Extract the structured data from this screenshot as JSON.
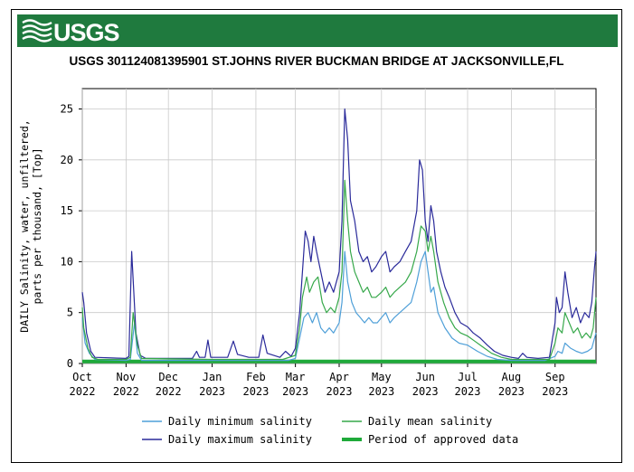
{
  "header": {
    "logo_text": "USGS",
    "title": "USGS 301124081395901 ST.JOHNS RIVER BUCKMAN BRIDGE AT JACKSONVILLE,FL"
  },
  "colors": {
    "banner": "#1f7a3e",
    "minimum": "#4e9fd8",
    "maximum": "#2a2a9a",
    "mean": "#36a84a",
    "approved": "#1faa3a"
  },
  "chart_data": {
    "type": "line",
    "ylabel": "DAILY Salinity, water, unfiltered, parts per thousand, [Top]",
    "xlabel": "",
    "ylim": [
      0,
      27
    ],
    "yticks": [
      0,
      5,
      10,
      15,
      20,
      25
    ],
    "xlim": [
      "2022-10-01",
      "2023-09-30"
    ],
    "xticks": [
      {
        "date": "2022-10-01",
        "label1": "Oct",
        "label2": "2022"
      },
      {
        "date": "2022-11-01",
        "label1": "Nov",
        "label2": "2022"
      },
      {
        "date": "2022-12-01",
        "label1": "Dec",
        "label2": "2022"
      },
      {
        "date": "2023-01-01",
        "label1": "Jan",
        "label2": "2023"
      },
      {
        "date": "2023-02-01",
        "label1": "Feb",
        "label2": "2023"
      },
      {
        "date": "2023-03-01",
        "label1": "Mar",
        "label2": "2023"
      },
      {
        "date": "2023-04-01",
        "label1": "Apr",
        "label2": "2023"
      },
      {
        "date": "2023-05-01",
        "label1": "May",
        "label2": "2023"
      },
      {
        "date": "2023-06-01",
        "label1": "Jun",
        "label2": "2023"
      },
      {
        "date": "2023-07-01",
        "label1": "Jul",
        "label2": "2023"
      },
      {
        "date": "2023-08-01",
        "label1": "Aug",
        "label2": "2023"
      },
      {
        "date": "2023-09-01",
        "label1": "Sep",
        "label2": "2023"
      }
    ],
    "grid": true,
    "legend_position": "bottom",
    "series": [
      {
        "name": "Daily minimum salinity",
        "color_key": "minimum",
        "points": [
          [
            "2022-10-01",
            4.5
          ],
          [
            "2022-10-03",
            2.0
          ],
          [
            "2022-10-06",
            1.0
          ],
          [
            "2022-10-10",
            0.4
          ],
          [
            "2022-11-01",
            0.3
          ],
          [
            "2022-11-04",
            0.4
          ],
          [
            "2022-11-07",
            4.0
          ],
          [
            "2022-11-09",
            1.0
          ],
          [
            "2022-11-12",
            0.3
          ],
          [
            "2023-01-01",
            0.3
          ],
          [
            "2023-02-10",
            0.3
          ],
          [
            "2023-02-24",
            0.3
          ],
          [
            "2023-03-01",
            0.5
          ],
          [
            "2023-03-04",
            2.5
          ],
          [
            "2023-03-07",
            4.5
          ],
          [
            "2023-03-10",
            5.0
          ],
          [
            "2023-03-13",
            4.0
          ],
          [
            "2023-03-16",
            5.0
          ],
          [
            "2023-03-19",
            3.5
          ],
          [
            "2023-03-22",
            3.0
          ],
          [
            "2023-03-25",
            3.5
          ],
          [
            "2023-03-28",
            3.0
          ],
          [
            "2023-04-01",
            4.0
          ],
          [
            "2023-04-03",
            6.0
          ],
          [
            "2023-04-05",
            11.0
          ],
          [
            "2023-04-07",
            8.0
          ],
          [
            "2023-04-10",
            6.0
          ],
          [
            "2023-04-13",
            5.0
          ],
          [
            "2023-04-16",
            4.5
          ],
          [
            "2023-04-19",
            4.0
          ],
          [
            "2023-04-22",
            4.5
          ],
          [
            "2023-04-25",
            4.0
          ],
          [
            "2023-04-28",
            4.0
          ],
          [
            "2023-05-01",
            4.5
          ],
          [
            "2023-05-04",
            5.0
          ],
          [
            "2023-05-07",
            4.0
          ],
          [
            "2023-05-10",
            4.5
          ],
          [
            "2023-05-14",
            5.0
          ],
          [
            "2023-05-18",
            5.5
          ],
          [
            "2023-05-22",
            6.0
          ],
          [
            "2023-05-26",
            8.0
          ],
          [
            "2023-05-29",
            10.0
          ],
          [
            "2023-06-01",
            11.0
          ],
          [
            "2023-06-03",
            9.0
          ],
          [
            "2023-06-05",
            7.0
          ],
          [
            "2023-06-07",
            7.5
          ],
          [
            "2023-06-10",
            5.0
          ],
          [
            "2023-06-15",
            3.5
          ],
          [
            "2023-06-20",
            2.5
          ],
          [
            "2023-06-25",
            2.0
          ],
          [
            "2023-07-01",
            1.8
          ],
          [
            "2023-07-08",
            1.2
          ],
          [
            "2023-07-15",
            0.7
          ],
          [
            "2023-07-22",
            0.4
          ],
          [
            "2023-08-01",
            0.3
          ],
          [
            "2023-08-15",
            0.3
          ],
          [
            "2023-08-25",
            0.3
          ],
          [
            "2023-09-01",
            0.7
          ],
          [
            "2023-09-03",
            1.2
          ],
          [
            "2023-09-06",
            1.0
          ],
          [
            "2023-09-08",
            2.0
          ],
          [
            "2023-09-12",
            1.5
          ],
          [
            "2023-09-16",
            1.2
          ],
          [
            "2023-09-20",
            1.0
          ],
          [
            "2023-09-24",
            1.2
          ],
          [
            "2023-09-27",
            1.5
          ],
          [
            "2023-09-30",
            3.0
          ]
        ]
      },
      {
        "name": "Daily maximum salinity",
        "color_key": "maximum",
        "points": [
          [
            "2022-10-01",
            7.0
          ],
          [
            "2022-10-02",
            6.0
          ],
          [
            "2022-10-04",
            3.0
          ],
          [
            "2022-10-07",
            1.2
          ],
          [
            "2022-10-10",
            0.6
          ],
          [
            "2022-11-01",
            0.5
          ],
          [
            "2022-11-03",
            0.7
          ],
          [
            "2022-11-05",
            11.0
          ],
          [
            "2022-11-08",
            3.0
          ],
          [
            "2022-11-11",
            0.8
          ],
          [
            "2022-11-15",
            0.5
          ],
          [
            "2022-12-18",
            0.5
          ],
          [
            "2022-12-21",
            1.2
          ],
          [
            "2022-12-23",
            0.6
          ],
          [
            "2022-12-27",
            0.6
          ],
          [
            "2022-12-29",
            2.3
          ],
          [
            "2022-12-31",
            0.6
          ],
          [
            "2023-01-12",
            0.6
          ],
          [
            "2023-01-16",
            2.2
          ],
          [
            "2023-01-19",
            0.9
          ],
          [
            "2023-01-27",
            0.6
          ],
          [
            "2023-02-03",
            0.6
          ],
          [
            "2023-02-06",
            2.8
          ],
          [
            "2023-02-09",
            1.0
          ],
          [
            "2023-02-18",
            0.6
          ],
          [
            "2023-02-22",
            1.2
          ],
          [
            "2023-02-26",
            0.7
          ],
          [
            "2023-03-01",
            1.5
          ],
          [
            "2023-03-04",
            5.0
          ],
          [
            "2023-03-06",
            9.0
          ],
          [
            "2023-03-08",
            13.0
          ],
          [
            "2023-03-10",
            12.0
          ],
          [
            "2023-03-12",
            10.0
          ],
          [
            "2023-03-14",
            12.5
          ],
          [
            "2023-03-16",
            11.0
          ],
          [
            "2023-03-19",
            9.0
          ],
          [
            "2023-03-22",
            7.0
          ],
          [
            "2023-03-25",
            8.0
          ],
          [
            "2023-03-28",
            7.0
          ],
          [
            "2023-04-01",
            9.0
          ],
          [
            "2023-04-03",
            14.0
          ],
          [
            "2023-04-05",
            25.0
          ],
          [
            "2023-04-07",
            22.0
          ],
          [
            "2023-04-09",
            16.0
          ],
          [
            "2023-04-12",
            14.0
          ],
          [
            "2023-04-15",
            11.0
          ],
          [
            "2023-04-18",
            10.0
          ],
          [
            "2023-04-21",
            10.5
          ],
          [
            "2023-04-24",
            9.0
          ],
          [
            "2023-04-27",
            9.5
          ],
          [
            "2023-05-01",
            10.5
          ],
          [
            "2023-05-04",
            11.0
          ],
          [
            "2023-05-07",
            9.0
          ],
          [
            "2023-05-10",
            9.5
          ],
          [
            "2023-05-14",
            10.0
          ],
          [
            "2023-05-18",
            11.0
          ],
          [
            "2023-05-22",
            12.0
          ],
          [
            "2023-05-26",
            15.0
          ],
          [
            "2023-05-28",
            20.0
          ],
          [
            "2023-05-30",
            19.0
          ],
          [
            "2023-06-01",
            14.0
          ],
          [
            "2023-06-03",
            12.0
          ],
          [
            "2023-06-05",
            15.5
          ],
          [
            "2023-06-07",
            14.0
          ],
          [
            "2023-06-09",
            11.0
          ],
          [
            "2023-06-12",
            9.0
          ],
          [
            "2023-06-15",
            7.5
          ],
          [
            "2023-06-18",
            6.5
          ],
          [
            "2023-06-22",
            5.0
          ],
          [
            "2023-06-26",
            4.0
          ],
          [
            "2023-07-01",
            3.6
          ],
          [
            "2023-07-05",
            3.0
          ],
          [
            "2023-07-10",
            2.5
          ],
          [
            "2023-07-15",
            1.8
          ],
          [
            "2023-07-20",
            1.2
          ],
          [
            "2023-07-26",
            0.8
          ],
          [
            "2023-08-01",
            0.6
          ],
          [
            "2023-08-06",
            0.5
          ],
          [
            "2023-08-09",
            1.0
          ],
          [
            "2023-08-12",
            0.6
          ],
          [
            "2023-08-20",
            0.5
          ],
          [
            "2023-08-28",
            0.6
          ],
          [
            "2023-09-01",
            4.0
          ],
          [
            "2023-09-02",
            6.5
          ],
          [
            "2023-09-04",
            5.0
          ],
          [
            "2023-09-06",
            5.5
          ],
          [
            "2023-09-08",
            9.0
          ],
          [
            "2023-09-10",
            7.0
          ],
          [
            "2023-09-13",
            4.5
          ],
          [
            "2023-09-16",
            5.5
          ],
          [
            "2023-09-19",
            4.0
          ],
          [
            "2023-09-22",
            5.0
          ],
          [
            "2023-09-25",
            4.5
          ],
          [
            "2023-09-27",
            6.0
          ],
          [
            "2023-09-29",
            9.5
          ],
          [
            "2023-09-30",
            11.0
          ]
        ]
      },
      {
        "name": "Daily mean salinity",
        "color_key": "mean",
        "points": [
          [
            "2022-10-01",
            5.5
          ],
          [
            "2022-10-02",
            3.5
          ],
          [
            "2022-10-05",
            1.5
          ],
          [
            "2022-10-08",
            0.6
          ],
          [
            "2022-10-12",
            0.4
          ],
          [
            "2022-11-01",
            0.4
          ],
          [
            "2022-11-04",
            0.6
          ],
          [
            "2022-11-06",
            5.0
          ],
          [
            "2022-11-09",
            1.8
          ],
          [
            "2022-11-12",
            0.5
          ],
          [
            "2022-12-31",
            0.4
          ],
          [
            "2023-02-20",
            0.4
          ],
          [
            "2023-03-01",
            0.8
          ],
          [
            "2023-03-04",
            3.5
          ],
          [
            "2023-03-06",
            6.5
          ],
          [
            "2023-03-09",
            8.5
          ],
          [
            "2023-03-11",
            7.0
          ],
          [
            "2023-03-14",
            8.0
          ],
          [
            "2023-03-17",
            8.5
          ],
          [
            "2023-03-20",
            6.0
          ],
          [
            "2023-03-23",
            5.0
          ],
          [
            "2023-03-26",
            5.5
          ],
          [
            "2023-03-29",
            5.0
          ],
          [
            "2023-04-01",
            6.5
          ],
          [
            "2023-04-03",
            9.0
          ],
          [
            "2023-04-05",
            18.0
          ],
          [
            "2023-04-07",
            14.0
          ],
          [
            "2023-04-09",
            11.0
          ],
          [
            "2023-04-12",
            9.0
          ],
          [
            "2023-04-15",
            8.0
          ],
          [
            "2023-04-18",
            7.0
          ],
          [
            "2023-04-21",
            7.5
          ],
          [
            "2023-04-24",
            6.5
          ],
          [
            "2023-04-27",
            6.5
          ],
          [
            "2023-05-01",
            7.0
          ],
          [
            "2023-05-04",
            7.5
          ],
          [
            "2023-05-07",
            6.5
          ],
          [
            "2023-05-10",
            7.0
          ],
          [
            "2023-05-14",
            7.5
          ],
          [
            "2023-05-18",
            8.0
          ],
          [
            "2023-05-22",
            9.0
          ],
          [
            "2023-05-26",
            11.0
          ],
          [
            "2023-05-29",
            13.5
          ],
          [
            "2023-06-01",
            13.0
          ],
          [
            "2023-06-03",
            11.0
          ],
          [
            "2023-06-05",
            12.5
          ],
          [
            "2023-06-07",
            11.0
          ],
          [
            "2023-06-10",
            8.0
          ],
          [
            "2023-06-14",
            6.0
          ],
          [
            "2023-06-18",
            4.5
          ],
          [
            "2023-06-22",
            3.5
          ],
          [
            "2023-06-26",
            3.0
          ],
          [
            "2023-07-01",
            2.7
          ],
          [
            "2023-07-06",
            2.2
          ],
          [
            "2023-07-12",
            1.6
          ],
          [
            "2023-07-18",
            1.0
          ],
          [
            "2023-07-25",
            0.6
          ],
          [
            "2023-08-01",
            0.4
          ],
          [
            "2023-08-15",
            0.4
          ],
          [
            "2023-08-28",
            0.4
          ],
          [
            "2023-09-01",
            2.0
          ],
          [
            "2023-09-03",
            3.5
          ],
          [
            "2023-09-06",
            3.0
          ],
          [
            "2023-09-08",
            5.0
          ],
          [
            "2023-09-11",
            4.0
          ],
          [
            "2023-09-14",
            3.0
          ],
          [
            "2023-09-17",
            3.5
          ],
          [
            "2023-09-20",
            2.5
          ],
          [
            "2023-09-23",
            3.0
          ],
          [
            "2023-09-26",
            2.5
          ],
          [
            "2023-09-28",
            3.5
          ],
          [
            "2023-09-30",
            6.5
          ]
        ]
      }
    ],
    "approved_period": {
      "name": "Period of approved data",
      "start": "2022-10-01",
      "end": "2023-09-30",
      "value": 0.2
    }
  }
}
